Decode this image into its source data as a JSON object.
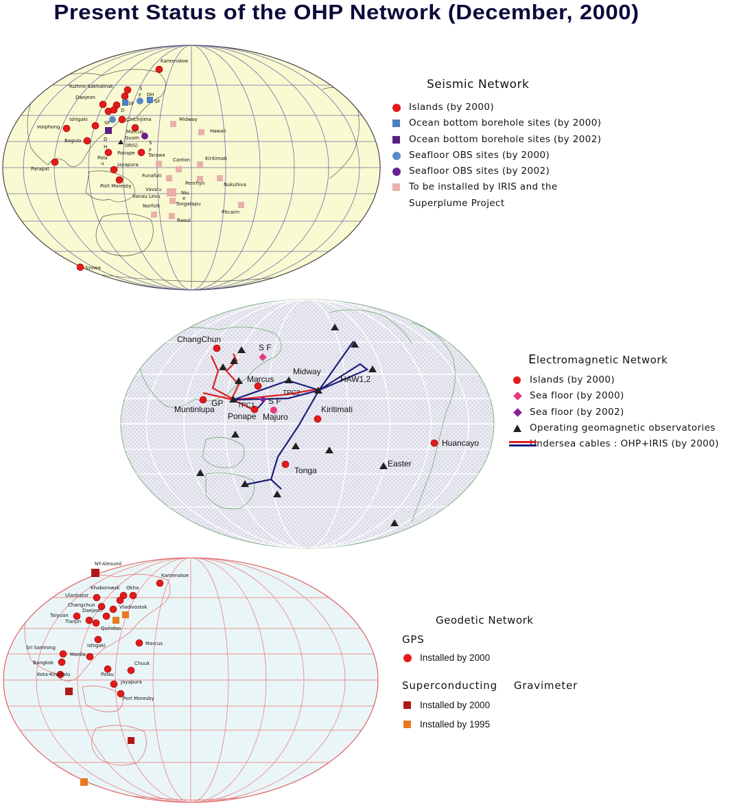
{
  "title": "Present Status of the OHP Network (December, 2000)",
  "colors": {
    "red": "#e41a1a",
    "blue_square": "#4a7fc0",
    "purple_square": "#5a2080",
    "blue_circle": "#5a8ac8",
    "purple_circle": "#6a2090",
    "pink_square": "#e8b0a8",
    "pink_diamond": "#e83880",
    "purple_diamond": "#8a2090",
    "triangle": "#222222",
    "cable_red": "#e02020",
    "cable_navy": "#1c1c7a",
    "dark_red_square": "#b01818",
    "orange_square": "#e87a20"
  },
  "seismic": {
    "heading": "Seismic Network",
    "legend": [
      {
        "symbol": "red-circle",
        "label": "Islands (by 2000)"
      },
      {
        "symbol": "blue-square",
        "label": "Ocean bottom borehole sites (by 2000)"
      },
      {
        "symbol": "purple-square",
        "label": "Ocean bottom borehole sites (by 2002)"
      },
      {
        "symbol": "blue-circle",
        "label": "Seafloor OBS sites (by 2000)"
      },
      {
        "symbol": "purple-circle",
        "label": "Seafloor OBS sites (by 2002)"
      },
      {
        "symbol": "pink-square",
        "label": "To be installed by IRIS and the"
      },
      {
        "symbol": "none",
        "label": "Superplume Project"
      }
    ],
    "labels": [
      "Kamenskoe",
      "Yuzhno-Sakhalinsk",
      "Daejeon",
      "Ishigaki",
      "Haiphong",
      "Baguio",
      "Chichijima",
      "Marcus",
      "Guam",
      "(IRIS)",
      "Ponape",
      "Pala",
      "u",
      "Jayapura",
      "Parapat",
      "Port Moresby",
      "Tarawa",
      "Midway",
      "Hawaii",
      "Canton",
      "Kiritimati",
      "Funafuti",
      "Penrhyn",
      "Nukuhiva",
      "Vava'u",
      "Vanau Levu",
      "Niu",
      "e",
      "Tongatapu",
      "Norfolk",
      "Pitcairn",
      "Raoul",
      "Syowa",
      "S",
      "F",
      "D",
      "H",
      "SF",
      "SF",
      "D",
      "SF",
      "D",
      "H",
      "S",
      "F"
    ]
  },
  "electromagnetic": {
    "heading_first": "E",
    "heading_rest": "lectromagnetic Network",
    "legend": [
      {
        "symbol": "red-circle",
        "label": "Islands (by 2000)"
      },
      {
        "symbol": "pink-diamond",
        "label": "Sea floor (by 2000)"
      },
      {
        "symbol": "purple-diamond",
        "label": "Sea floor (by 2002)"
      },
      {
        "symbol": "triangle",
        "label": "Operating geomagnetic observatories"
      },
      {
        "symbol": "cable",
        "label": "Undersea cables : OHP+IRIS (by 2000)"
      }
    ],
    "labels": [
      "ChangChun",
      "S F",
      "Marcus",
      "Midway",
      "HAW1,2",
      "TPC2",
      "GP",
      "Muntinlupa",
      "TPC1",
      "Ponape",
      "S F",
      "Majuro",
      "Kiritimati",
      "Huancayo",
      "Tonga",
      "Easter"
    ]
  },
  "geodetic": {
    "heading": "Geodetic Network",
    "gps_heading": "GPS",
    "gps_legend": [
      {
        "symbol": "red-circle",
        "label": "Installed by 2000"
      }
    ],
    "sg_heading_1": "Superconducting",
    "sg_heading_2": "Gravimeter",
    "sg_legend": [
      {
        "symbol": "dark-red-square",
        "label": "Installed by 2000"
      },
      {
        "symbol": "orange-square",
        "label": "Installed by 1995"
      }
    ],
    "labels": [
      "NY-Alesund",
      "Kamenskoe",
      "Khaborowsk",
      "Okha",
      "Ulanbator",
      "Changchun",
      "Vladivostok",
      "Daejeon",
      "Taiyuan",
      "Tianjin",
      "Quindao",
      "Ishigaki",
      "Marcus",
      "Sri Samrong",
      "Manila",
      "Bangkok",
      "Chuuk",
      "Palau",
      "Kota-Kinabalu",
      "Jayapura",
      "Port Moresby"
    ]
  }
}
